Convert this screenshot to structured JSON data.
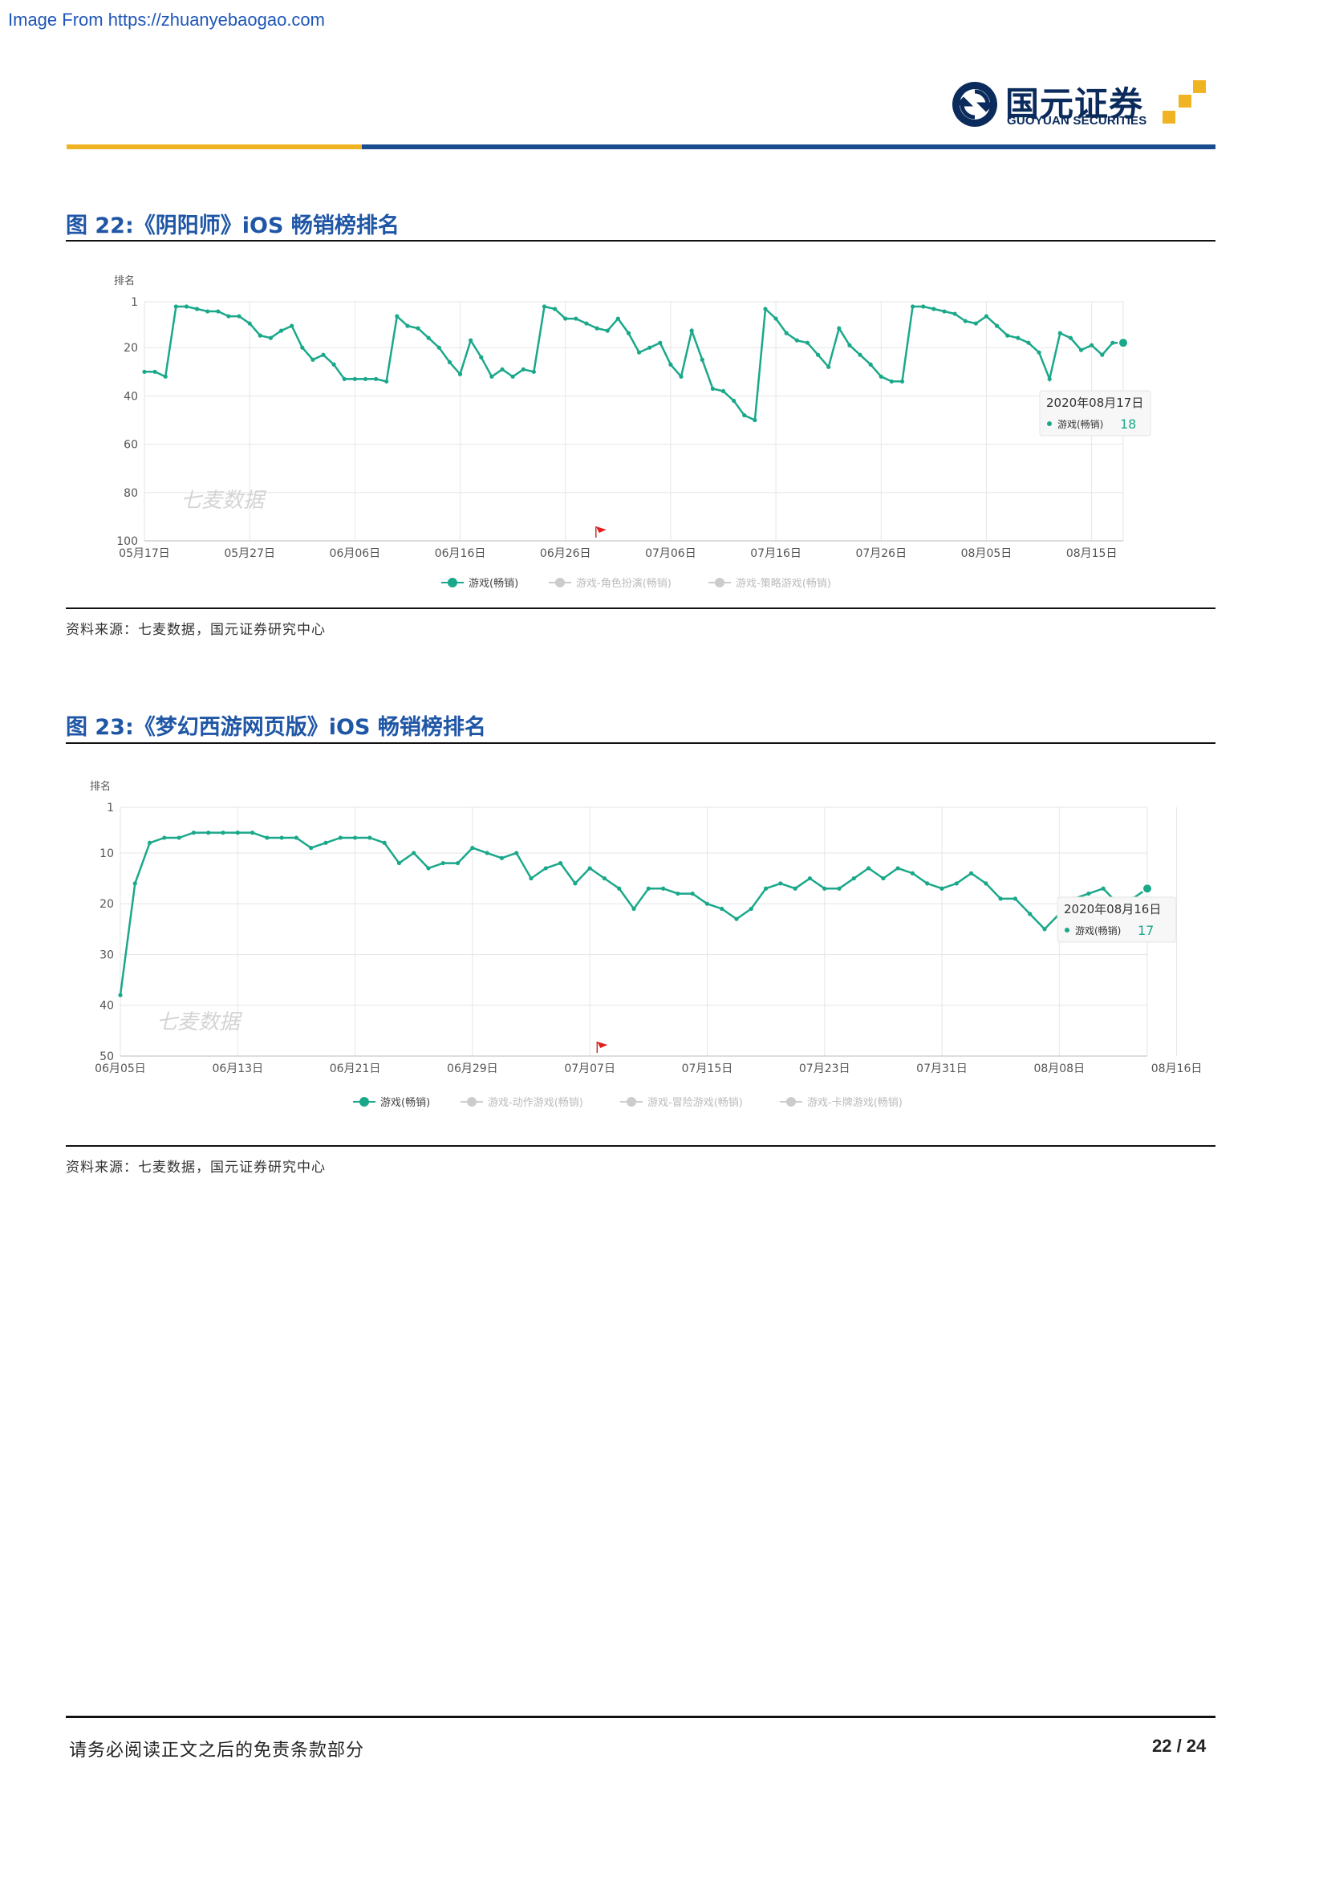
{
  "header": {
    "source_url": "Image From https://zhuanyebaogao.com",
    "brand_cn": "国元证券",
    "brand_en": "GUOYUAN SECURITIES"
  },
  "figure22": {
    "title": "图 22:《阴阳师》iOS 畅销榜排名",
    "source": "资料来源：七麦数据，国元证券研究中心"
  },
  "figure23": {
    "title": "图 23:《梦幻西游网页版》iOS 畅销榜排名",
    "source": "资料来源：七麦数据，国元证券研究中心"
  },
  "footer": {
    "disclaimer": "请务必阅读正文之后的免责条款部分",
    "page": "22 / 24"
  },
  "chart_data": [
    {
      "type": "line",
      "ylabel": "排名",
      "ylim": [
        1,
        100
      ],
      "y_inverted": true,
      "yticks": [
        "1",
        "20",
        "40",
        "60",
        "80",
        "100"
      ],
      "x_tick_labels": [
        "05月17日",
        "05月27日",
        "06月06日",
        "06月16日",
        "06月26日",
        "07月06日",
        "07月16日",
        "07月26日",
        "08月05日",
        "08月15日"
      ],
      "watermark": "七麦数据",
      "tooltip": {
        "date": "2020年08月17日",
        "series": "游戏(畅销)",
        "value": "18"
      },
      "legend": [
        "游戏(畅销)",
        "游戏-角色扮演(畅销)",
        "游戏-策略游戏(畅销)"
      ],
      "series": [
        {
          "name": "游戏(畅销)",
          "color": "#1aa88a",
          "x_start": "2020-05-17",
          "values": [
            30,
            30,
            32,
            3,
            3,
            4,
            5,
            5,
            7,
            7,
            10,
            15,
            16,
            13,
            11,
            20,
            25,
            23,
            27,
            33,
            33,
            33,
            33,
            34,
            7,
            11,
            12,
            16,
            20,
            26,
            31,
            17,
            24,
            32,
            29,
            32,
            29,
            30,
            3,
            4,
            8,
            8,
            10,
            12,
            13,
            8,
            14,
            22,
            20,
            18,
            27,
            32,
            13,
            25,
            37,
            38,
            42,
            48,
            50,
            4,
            8,
            14,
            17,
            18,
            23,
            28,
            12,
            19,
            23,
            27,
            32,
            34,
            34,
            3,
            3,
            4,
            5,
            6,
            9,
            10,
            7,
            11,
            15,
            16,
            18,
            22,
            33,
            14,
            16,
            21,
            19,
            23,
            18,
            18
          ]
        }
      ]
    },
    {
      "type": "line",
      "ylabel": "排名",
      "ylim": [
        1,
        50
      ],
      "y_inverted": true,
      "yticks": [
        "1",
        "10",
        "20",
        "30",
        "40",
        "50"
      ],
      "x_tick_labels": [
        "06月05日",
        "06月13日",
        "06月21日",
        "06月29日",
        "07月07日",
        "07月15日",
        "07月23日",
        "07月31日",
        "08月08日",
        "08月16日"
      ],
      "watermark": "七麦数据",
      "tooltip": {
        "date": "2020年08月16日",
        "series": "游戏(畅销)",
        "value": "17"
      },
      "legend": [
        "游戏(畅销)",
        "游戏-动作游戏(畅销)",
        "游戏-冒险游戏(畅销)",
        "游戏-卡牌游戏(畅销)"
      ],
      "series": [
        {
          "name": "游戏(畅销)",
          "color": "#1aa88a",
          "x_start": "2020-06-05",
          "values": [
            38,
            16,
            8,
            7,
            7,
            6,
            6,
            6,
            6,
            6,
            7,
            7,
            7,
            9,
            8,
            7,
            7,
            7,
            8,
            12,
            10,
            13,
            12,
            12,
            9,
            10,
            11,
            10,
            15,
            13,
            12,
            16,
            13,
            15,
            17,
            21,
            17,
            17,
            18,
            18,
            20,
            21,
            23,
            21,
            17,
            16,
            17,
            15,
            17,
            17,
            15,
            13,
            15,
            13,
            14,
            16,
            17,
            16,
            14,
            16,
            19,
            19,
            22,
            25,
            22,
            19,
            18,
            17,
            20,
            19,
            17
          ]
        }
      ]
    }
  ]
}
